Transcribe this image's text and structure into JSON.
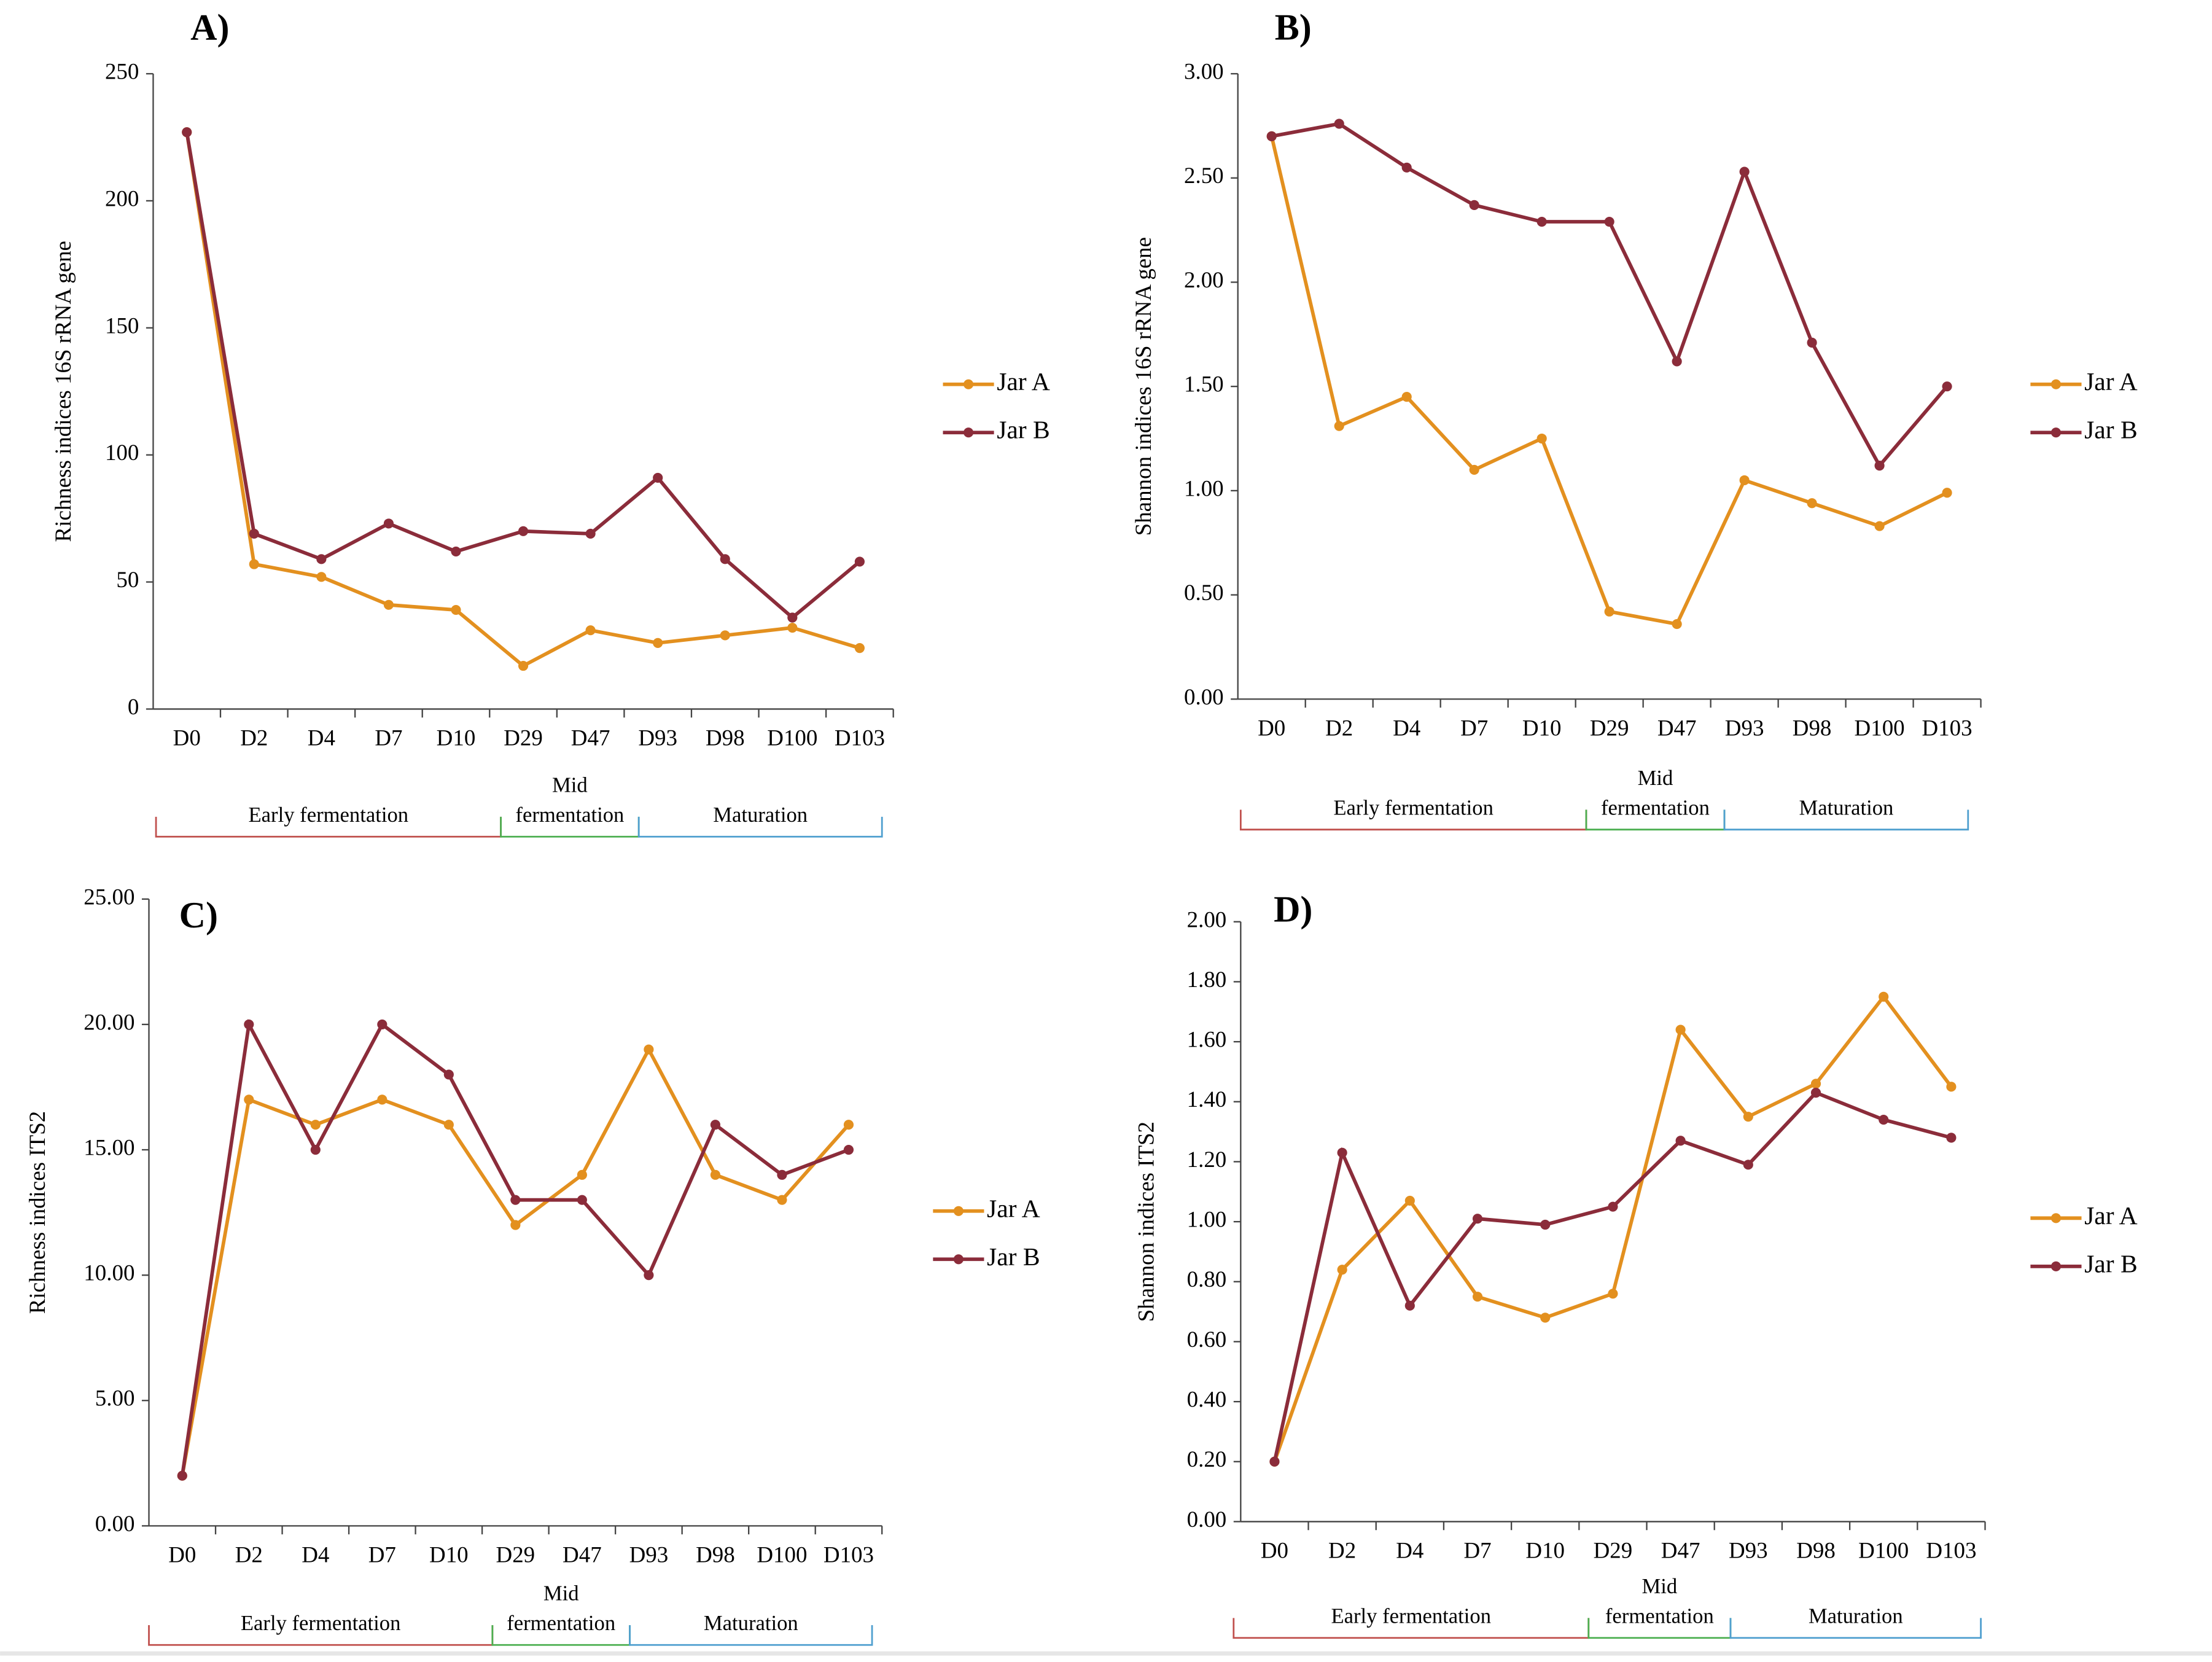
{
  "chart_data": [
    {
      "type": "line",
      "title": "A)",
      "y_label": "Richness indices 16S rRNA gene",
      "categories": [
        "D0",
        "D2",
        "D4",
        "D7",
        "D10",
        "D29",
        "D47",
        "D93",
        "D98",
        "D100",
        "D103"
      ],
      "series": [
        {
          "name": "Jar A",
          "color": "#e3901f",
          "values": [
            227,
            57,
            52,
            41,
            39,
            17,
            31,
            26,
            29,
            32,
            24
          ]
        },
        {
          "name": "Jar B",
          "color": "#8b2c3a",
          "values": [
            227,
            69,
            59,
            73,
            62,
            70,
            69,
            91,
            59,
            36,
            58
          ]
        }
      ],
      "ylim": [
        0,
        250
      ],
      "yticks": [
        0,
        50,
        100,
        150,
        200,
        250
      ],
      "phases": [
        {
          "lines": [
            "Early fermentation"
          ],
          "color": "#c0504d"
        },
        {
          "lines": [
            "Mid",
            "fermentation"
          ],
          "color": "#4caf50"
        },
        {
          "lines": [
            "Maturation"
          ],
          "color": "#4f9fcf"
        }
      ]
    },
    {
      "type": "line",
      "title": "B)",
      "y_label": "Shannon indices 16S rRNA gene",
      "categories": [
        "D0",
        "D2",
        "D4",
        "D7",
        "D10",
        "D29",
        "D47",
        "D93",
        "D98",
        "D100",
        "D103"
      ],
      "series": [
        {
          "name": "Jar A",
          "color": "#e3901f",
          "values": [
            2.7,
            1.31,
            1.45,
            1.1,
            1.25,
            0.42,
            0.36,
            1.05,
            0.94,
            0.83,
            0.99
          ]
        },
        {
          "name": "Jar B",
          "color": "#8b2c3a",
          "values": [
            2.7,
            2.76,
            2.55,
            2.37,
            2.29,
            2.29,
            1.62,
            2.53,
            1.71,
            1.12,
            1.5
          ]
        }
      ],
      "ylim": [
        0,
        3
      ],
      "yticks": [
        {
          "value": 0,
          "label": "0.00"
        },
        {
          "value": 0.5,
          "label": "0.50"
        },
        {
          "value": 1,
          "label": "1.00"
        },
        {
          "value": 1.5,
          "label": "1.50"
        },
        {
          "value": 2,
          "label": "2.00"
        },
        {
          "value": 2.5,
          "label": "2.50"
        },
        {
          "value": 3,
          "label": "3.00"
        }
      ],
      "phases": [
        {
          "lines": [
            "Early fermentation"
          ],
          "color": "#c0504d"
        },
        {
          "lines": [
            "Mid",
            "fermentation"
          ],
          "color": "#4caf50"
        },
        {
          "lines": [
            "Maturation"
          ],
          "color": "#4f9fcf"
        }
      ]
    },
    {
      "type": "line",
      "title": "C)",
      "y_label": "Richness indices ITS2",
      "categories": [
        "D0",
        "D2",
        "D4",
        "D7",
        "D10",
        "D29",
        "D47",
        "D93",
        "D98",
        "D100",
        "D103"
      ],
      "series": [
        {
          "name": "Jar A",
          "color": "#e3901f",
          "values": [
            2,
            17,
            16,
            17,
            16,
            12,
            14,
            19,
            14,
            13,
            16
          ]
        },
        {
          "name": "Jar B",
          "color": "#8b2c3a",
          "values": [
            2,
            20,
            15,
            20,
            18,
            13,
            13,
            10,
            16,
            14,
            15
          ]
        }
      ],
      "ylim": [
        0,
        25
      ],
      "yticks": [
        {
          "value": 0,
          "label": "0.00"
        },
        {
          "value": 5,
          "label": "5.00"
        },
        {
          "value": 10,
          "label": "10.00"
        },
        {
          "value": 15,
          "label": "15.00"
        },
        {
          "value": 20,
          "label": "20.00"
        },
        {
          "value": 25,
          "label": "25.00"
        }
      ],
      "phases": [
        {
          "lines": [
            "Early fermentation"
          ],
          "color": "#c0504d"
        },
        {
          "lines": [
            "Mid",
            "fermentation"
          ],
          "color": "#4caf50"
        },
        {
          "lines": [
            "Maturation"
          ],
          "color": "#4f9fcf"
        }
      ]
    },
    {
      "type": "line",
      "title": "D)",
      "y_label": "Shannon indices ITS2",
      "categories": [
        "D0",
        "D2",
        "D4",
        "D7",
        "D10",
        "D29",
        "D47",
        "D93",
        "D98",
        "D100",
        "D103"
      ],
      "series": [
        {
          "name": "Jar A",
          "color": "#e3901f",
          "values": [
            0.2,
            0.84,
            1.07,
            0.75,
            0.68,
            0.76,
            1.64,
            1.35,
            1.46,
            1.75,
            1.45
          ]
        },
        {
          "name": "Jar B",
          "color": "#8b2c3a",
          "values": [
            0.2,
            1.23,
            0.72,
            1.01,
            0.99,
            1.05,
            1.27,
            1.19,
            1.43,
            1.34,
            1.28
          ]
        }
      ],
      "ylim": [
        0,
        2
      ],
      "yticks": [
        {
          "value": 0,
          "label": "0.00"
        },
        {
          "value": 0.2,
          "label": "0.20"
        },
        {
          "value": 0.4,
          "label": "0.40"
        },
        {
          "value": 0.6,
          "label": "0.60"
        },
        {
          "value": 0.8,
          "label": "0.80"
        },
        {
          "value": 1,
          "label": "1.00"
        },
        {
          "value": 1.2,
          "label": "1.20"
        },
        {
          "value": 1.4,
          "label": "1.40"
        },
        {
          "value": 1.6,
          "label": "1.60"
        },
        {
          "value": 1.8,
          "label": "1.80"
        },
        {
          "value": 2,
          "label": "2.00"
        }
      ],
      "phases": [
        {
          "lines": [
            "Early fermentation"
          ],
          "color": "#c0504d"
        },
        {
          "lines": [
            "Mid",
            "fermentation"
          ],
          "color": "#4caf50"
        },
        {
          "lines": [
            "Maturation"
          ],
          "color": "#4f9fcf"
        }
      ]
    }
  ]
}
